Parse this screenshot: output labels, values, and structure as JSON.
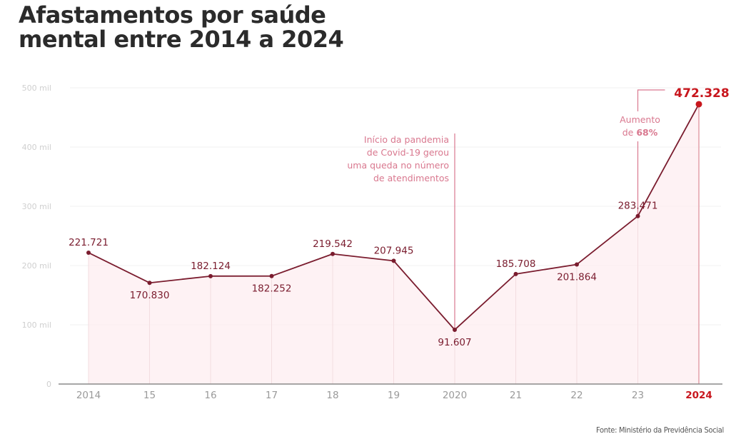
{
  "title_lines": [
    "Afastamentos por saúde",
    "mental entre 2014 a 2024"
  ],
  "source": "Fonte: Ministério da Previdência Social",
  "colors": {
    "line": "#7a1c2e",
    "fill": "#fdeef0",
    "highlight": "#c8161d",
    "annotation": "#d9788f",
    "grid": "#f0f0f0",
    "tick_text": "#9a9a9a",
    "ylabel_text": "#cfcfcf"
  },
  "chart_data": {
    "type": "area",
    "title": "Afastamentos por saúde mental entre 2014 a 2024",
    "xlabel": "",
    "ylabel": "",
    "ylim": [
      0,
      500000
    ],
    "grid": true,
    "categories": [
      "2014",
      "15",
      "16",
      "17",
      "18",
      "19",
      "2020",
      "21",
      "22",
      "23",
      "2024"
    ],
    "values": [
      221721,
      170830,
      182124,
      182252,
      219542,
      207945,
      91607,
      185708,
      201864,
      283471,
      472328
    ],
    "data_labels": [
      "221.721",
      "170.830",
      "182.124",
      "182.252",
      "219.542",
      "207.945",
      "91.607",
      "185.708",
      "201.864",
      "283.471",
      "472.328"
    ],
    "label_positions": [
      "above",
      "below",
      "above",
      "below",
      "above",
      "above",
      "below",
      "above",
      "below",
      "above",
      "above"
    ],
    "y_ticks": [
      {
        "value": 0,
        "label": "0"
      },
      {
        "value": 100000,
        "label": "100 mil"
      },
      {
        "value": 200000,
        "label": "200 mil"
      },
      {
        "value": 300000,
        "label": "300 mil"
      },
      {
        "value": 400000,
        "label": "400 mil"
      },
      {
        "value": 500000,
        "label": "500 mil"
      }
    ],
    "highlight_index": 10,
    "annotations": [
      {
        "category_index": 6,
        "lines": [
          "Início da pandemia",
          "de Covid-19 gerou",
          "uma queda no número",
          "de atendimentos"
        ]
      },
      {
        "from_index": 9,
        "to_index": 10,
        "line1": "Aumento",
        "line2_prefix": "de ",
        "line2_bold": "68%"
      }
    ]
  }
}
